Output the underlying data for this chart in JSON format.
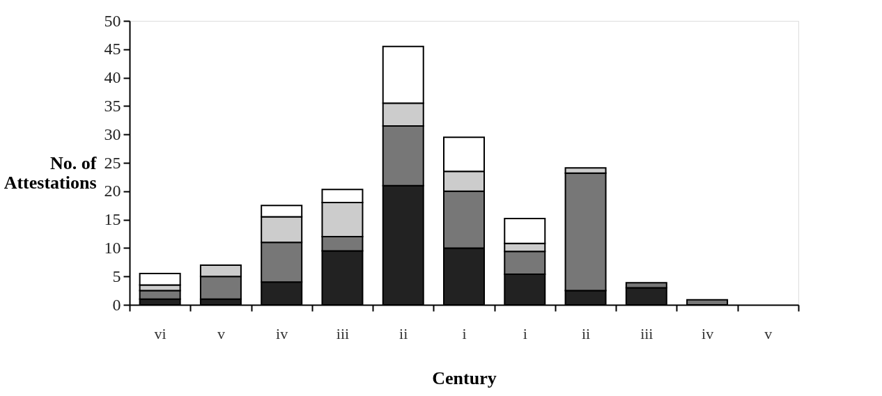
{
  "chart_data": {
    "type": "bar",
    "stacked": true,
    "xlabel": "Century",
    "ylabel": "No. of Attestations",
    "categories": [
      "vi",
      "v",
      "iv",
      "iii",
      "ii",
      "i",
      "i",
      "ii",
      "iii",
      "iv",
      "v"
    ],
    "series": [
      {
        "color": "#222222",
        "values": [
          1,
          1,
          4,
          9.5,
          21,
          10,
          5.4,
          2.5,
          3,
          null,
          null
        ]
      },
      {
        "color": "#777777",
        "values": [
          1.5,
          4,
          7,
          2.5,
          10.5,
          10,
          4,
          20.7,
          0.9,
          0.9,
          null
        ]
      },
      {
        "color": "#cccccc",
        "values": [
          1,
          2,
          4.5,
          6,
          4,
          3.5,
          1.4,
          0.9,
          null,
          null,
          null
        ]
      },
      {
        "color": "#ffffff",
        "values": [
          2,
          null,
          2,
          2.3,
          10,
          6,
          4.4,
          null,
          null,
          null,
          null
        ]
      }
    ],
    "ylim": [
      0,
      50
    ],
    "yticks": [
      0,
      5,
      10,
      15,
      20,
      25,
      30,
      35,
      40,
      45,
      50
    ],
    "grid": false
  }
}
